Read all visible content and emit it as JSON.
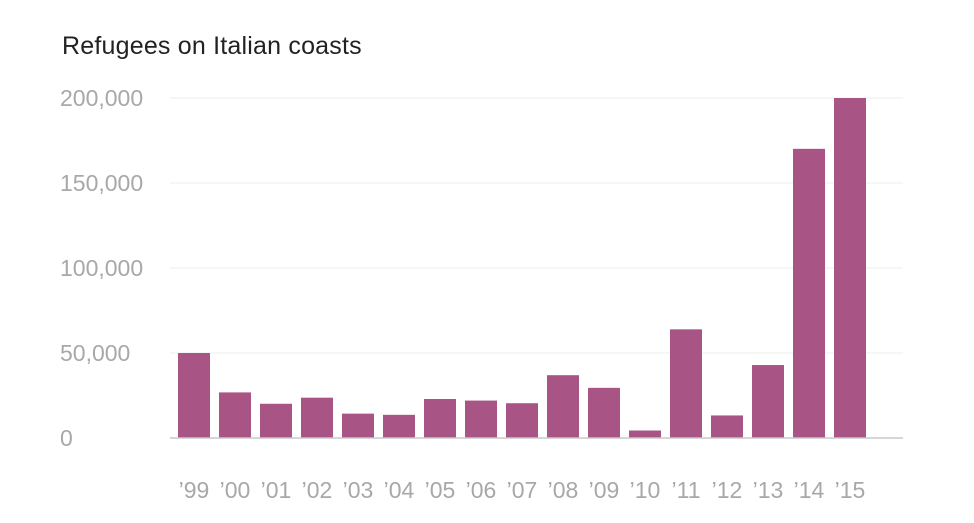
{
  "chart_data": {
    "type": "bar",
    "title": "Refugees on Italian coasts",
    "xlabel": "",
    "ylabel": "",
    "categories": [
      "’99",
      "’00",
      "’01",
      "’02",
      "’03",
      "’04",
      "’05",
      "’06",
      "’07",
      "’08",
      "’09",
      "’10",
      "’11",
      "’12",
      "’13",
      "’14",
      "’15"
    ],
    "values": [
      49999,
      26817,
      20143,
      23719,
      14331,
      13635,
      22939,
      22016,
      20455,
      36951,
      29500,
      4406,
      63922,
      13267,
      42925,
      170100,
      200000
    ],
    "yticks": [
      0,
      50000,
      100000,
      150000,
      200000
    ],
    "ytick_labels": [
      "0",
      "50,000",
      "100,000",
      "150,000",
      "200,000"
    ],
    "ylim": [
      0,
      200000
    ],
    "grid": true,
    "colors": {
      "bar": "#a85586",
      "grid": "#ececec",
      "baseline": "#c8c8c8",
      "tick_text": "#a8a8a8",
      "title_text": "#222222"
    }
  }
}
